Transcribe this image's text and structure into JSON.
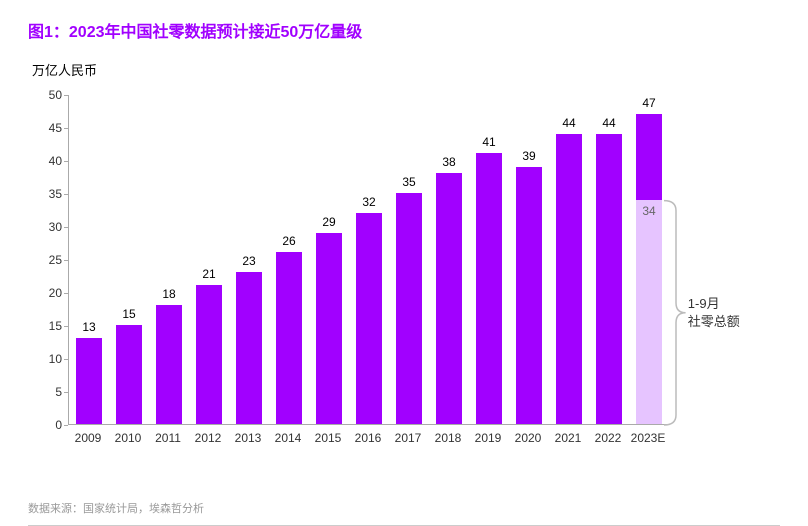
{
  "chart": {
    "type": "bar",
    "title": "图1：2023年中国社零数据预计接近50万亿量级",
    "title_color": "#a100ff",
    "title_fontsize": 16,
    "ylabel": "万亿人民币",
    "label_fontsize": 13,
    "ylim": [
      0,
      50
    ],
    "ytick_step": 5,
    "yticks": [
      0,
      5,
      10,
      15,
      20,
      25,
      30,
      35,
      40,
      45,
      50
    ],
    "categories": [
      "2009",
      "2010",
      "2011",
      "2012",
      "2013",
      "2014",
      "2015",
      "2016",
      "2017",
      "2018",
      "2019",
      "2020",
      "2021",
      "2022",
      "2023E"
    ],
    "values": [
      13,
      15,
      18,
      21,
      23,
      26,
      29,
      32,
      35,
      38,
      41,
      39,
      44,
      44,
      47
    ],
    "bar_color": "#a100ff",
    "bar_width": 0.64,
    "background_color": "#ffffff",
    "axis_color": "#aaaaaa",
    "value_label_color": "#000000",
    "value_label_fontsize": 12,
    "xlabel_fontsize": 12,
    "last_bar": {
      "projected_total": 47,
      "actual_portion_value": 34,
      "actual_portion_label": "34",
      "actual_color": "#e6c4ff",
      "projected_label": "47",
      "border_style": "dashed",
      "border_color": "#333333"
    },
    "annotation": {
      "text_line1": "1-9月",
      "text_line2": "社零总额",
      "color": "#333333",
      "fontsize": 13,
      "bracket_color": "#bbbbbb"
    },
    "source": "数据来源：国家统计局，埃森哲分析",
    "source_color": "#999999",
    "source_fontsize": 11
  }
}
